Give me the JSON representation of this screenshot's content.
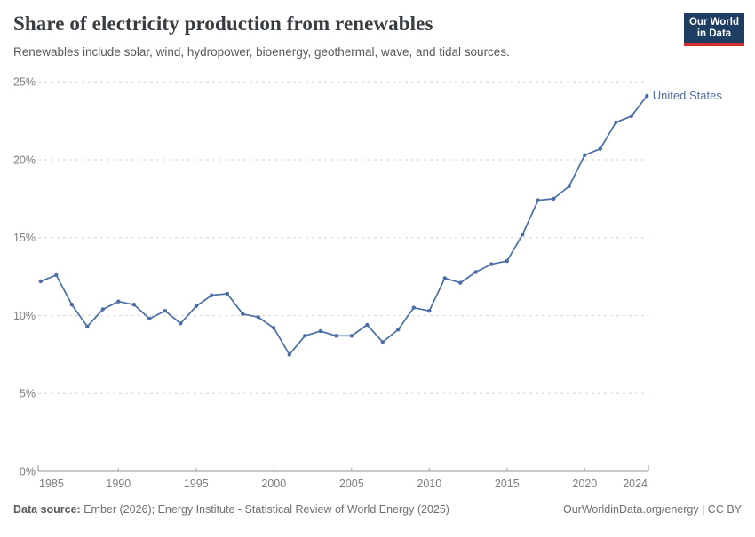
{
  "header": {
    "logo": {
      "line1": "Our World",
      "line2": "in Data"
    }
  },
  "chart_data": {
    "type": "line",
    "title": "Share of electricity production from renewables",
    "subtitle": "Renewables include solar, wind, hydropower, bioenergy, geothermal, wave, and tidal sources.",
    "x": [
      1985,
      1986,
      1987,
      1988,
      1989,
      1990,
      1991,
      1992,
      1993,
      1994,
      1995,
      1996,
      1997,
      1998,
      1999,
      2000,
      2001,
      2002,
      2003,
      2004,
      2005,
      2006,
      2007,
      2008,
      2009,
      2010,
      2011,
      2012,
      2013,
      2014,
      2015,
      2016,
      2017,
      2018,
      2019,
      2020,
      2021,
      2022,
      2023,
      2024
    ],
    "series": [
      {
        "name": "United States",
        "color": "#4c6da6",
        "values": [
          12.2,
          12.6,
          10.7,
          9.3,
          10.4,
          10.9,
          10.7,
          9.8,
          10.3,
          9.5,
          10.6,
          11.3,
          11.4,
          10.1,
          9.9,
          9.2,
          7.5,
          8.7,
          9.0,
          8.7,
          8.7,
          9.4,
          8.3,
          9.1,
          10.5,
          10.3,
          12.4,
          12.1,
          12.8,
          13.3,
          13.5,
          15.2,
          17.4,
          17.5,
          18.3,
          20.3,
          20.7,
          22.4,
          22.8,
          24.1
        ]
      }
    ],
    "xlim": [
      1985,
      2024
    ],
    "ylim": [
      0,
      25
    ],
    "x_ticks": [
      1985,
      1990,
      1995,
      2000,
      2005,
      2010,
      2015,
      2020,
      2024
    ],
    "y_ticks": [
      0,
      5,
      10,
      15,
      20,
      25
    ],
    "y_tick_suffix": "%",
    "grid": "horizontal-dashed",
    "legend": "line-end-label"
  },
  "footer": {
    "datasource_label": "Data source:",
    "datasource_text": " Ember (2026); Energy Institute - Statistical Review of World Energy (2025)",
    "right_text": "OurWorldinData.org/energy | CC BY"
  },
  "colors": {
    "line": "#4c6da6",
    "gridline": "#dcdcdc",
    "axis": "#a6a6a6",
    "tick_label": "#7d7d7d",
    "logo_bg": "#1d3d63",
    "logo_bar": "#d42b2b"
  }
}
